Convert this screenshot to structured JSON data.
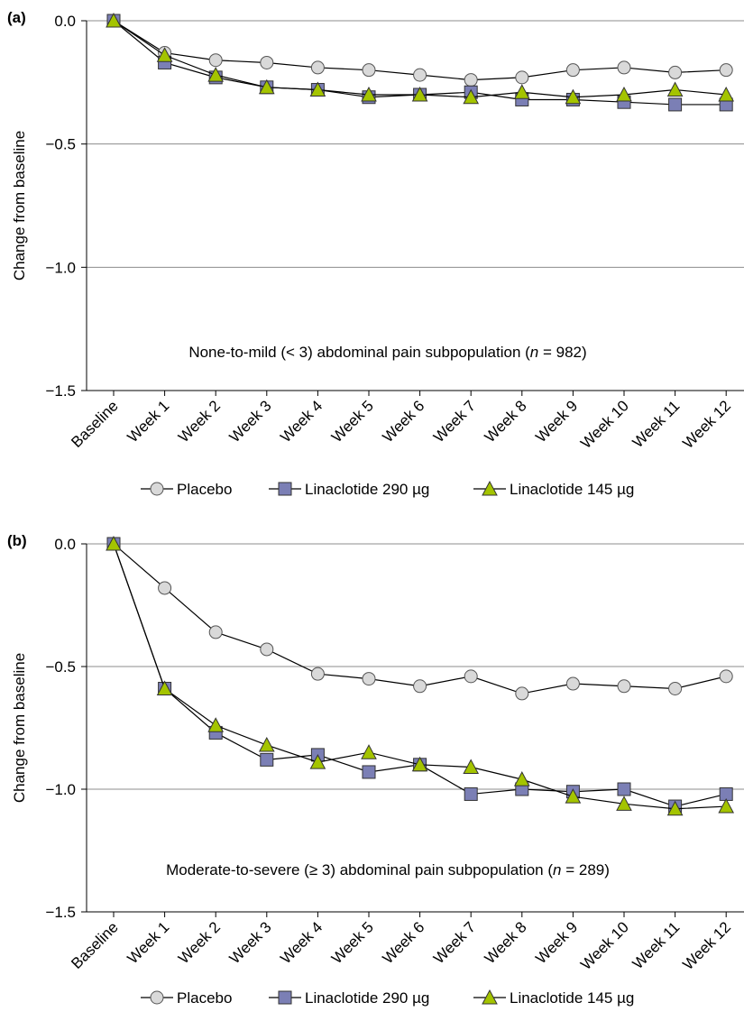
{
  "chart_data": [
    {
      "type": "line",
      "panel_label": "(a)",
      "ylabel": "Change from baseline",
      "ylim": [
        -1.5,
        0.0
      ],
      "yticks": [
        "0.0",
        "−0.5",
        "−1.0",
        "−1.5"
      ],
      "ytick_values": [
        0.0,
        -0.5,
        -1.0,
        -1.5
      ],
      "grid": true,
      "annotation": {
        "prefix": "None-to-mild (< 3) abdominal pain subpopulation (",
        "n_symbol": "n",
        "suffix": " = 982)"
      },
      "categories": [
        "Baseline",
        "Week 1",
        "Week 2",
        "Week 3",
        "Week 4",
        "Week 5",
        "Week 6",
        "Week 7",
        "Week 8",
        "Week 9",
        "Week 10",
        "Week 11",
        "Week 12"
      ],
      "series": [
        {
          "name": "Placebo",
          "marker": "circle",
          "color": "#d9d9d9",
          "values": [
            0.0,
            -0.13,
            -0.16,
            -0.17,
            -0.19,
            -0.2,
            -0.22,
            -0.24,
            -0.23,
            -0.2,
            -0.19,
            -0.21,
            -0.2
          ]
        },
        {
          "name": "Linaclotide 290 µg",
          "marker": "square",
          "color": "#7b7fb5",
          "values": [
            0.0,
            -0.17,
            -0.23,
            -0.27,
            -0.28,
            -0.31,
            -0.3,
            -0.29,
            -0.32,
            -0.32,
            -0.33,
            -0.34,
            -0.34
          ]
        },
        {
          "name": "Linaclotide 145 µg",
          "marker": "triangle",
          "color": "#a4c400",
          "values": [
            0.0,
            -0.14,
            -0.22,
            -0.27,
            -0.28,
            -0.3,
            -0.3,
            -0.31,
            -0.29,
            -0.31,
            -0.3,
            -0.28,
            -0.3
          ]
        }
      ],
      "legend": [
        "Placebo",
        "Linaclotide 290 µg",
        "Linaclotide 145 µg"
      ],
      "legend_position": "bottom"
    },
    {
      "type": "line",
      "panel_label": "(b)",
      "ylabel": "Change from baseline",
      "ylim": [
        -1.5,
        0.0
      ],
      "yticks": [
        "0.0",
        "−0.5",
        "−1.0",
        "−1.5"
      ],
      "ytick_values": [
        0.0,
        -0.5,
        -1.0,
        -1.5
      ],
      "grid": true,
      "annotation": {
        "prefix": "Moderate-to-severe (≥ 3) abdominal pain subpopulation (",
        "n_symbol": "n",
        "suffix": " = 289)"
      },
      "categories": [
        "Baseline",
        "Week 1",
        "Week 2",
        "Week 3",
        "Week 4",
        "Week 5",
        "Week 6",
        "Week 7",
        "Week 8",
        "Week 9",
        "Week 10",
        "Week 11",
        "Week 12"
      ],
      "series": [
        {
          "name": "Placebo",
          "marker": "circle",
          "color": "#d9d9d9",
          "values": [
            0.0,
            -0.18,
            -0.36,
            -0.43,
            -0.53,
            -0.55,
            -0.58,
            -0.54,
            -0.61,
            -0.57,
            -0.58,
            -0.59,
            -0.54
          ]
        },
        {
          "name": "Linaclotide 290 µg",
          "marker": "square",
          "color": "#7b7fb5",
          "values": [
            0.0,
            -0.59,
            -0.77,
            -0.88,
            -0.86,
            -0.93,
            -0.9,
            -1.02,
            -1.0,
            -1.01,
            -1.0,
            -1.07,
            -1.02
          ]
        },
        {
          "name": "Linaclotide 145 µg",
          "marker": "triangle",
          "color": "#a4c400",
          "values": [
            0.0,
            -0.59,
            -0.74,
            -0.82,
            -0.89,
            -0.85,
            -0.9,
            -0.91,
            -0.96,
            -1.03,
            -1.06,
            -1.08,
            -1.07
          ]
        }
      ],
      "legend": [
        "Placebo",
        "Linaclotide 290 µg",
        "Linaclotide 145 µg"
      ],
      "legend_position": "bottom"
    }
  ]
}
